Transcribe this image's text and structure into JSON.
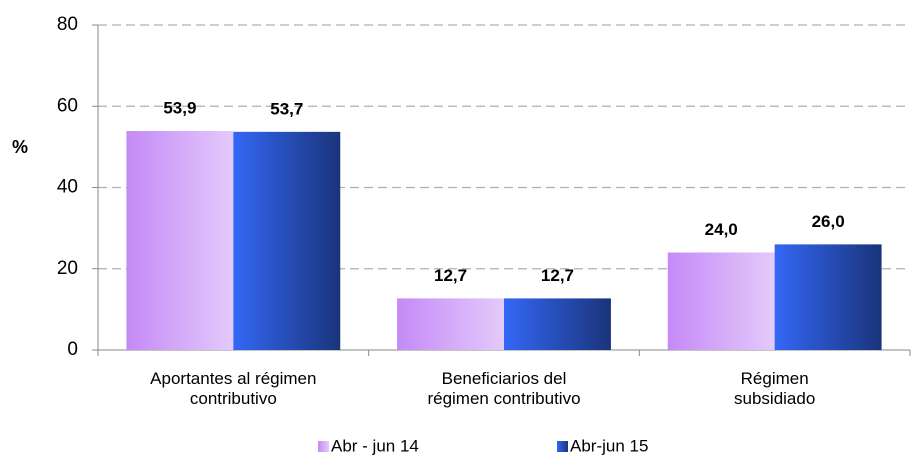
{
  "chart_data": {
    "type": "bar",
    "y_label": "%",
    "categories": [
      "Aportantes al régimen contributivo",
      "Beneficiarios del régimen contributivo",
      "Régimen subsidiado"
    ],
    "series": [
      {
        "name": "Abr - jun 14",
        "color": "#c48af6",
        "values": [
          53.9,
          12.7,
          24.0
        ],
        "value_labels": [
          "53,9",
          "12,7",
          "24,0"
        ]
      },
      {
        "name": "Abr-jun 15",
        "color": "#3367f5",
        "values": [
          53.7,
          12.7,
          26.0
        ],
        "value_labels": [
          "53,7",
          "12,7",
          "26,0"
        ]
      }
    ],
    "ylim": [
      0,
      80
    ],
    "yticks": [
      0,
      20,
      40,
      60,
      80
    ],
    "grid": true,
    "legend": "bottom"
  }
}
